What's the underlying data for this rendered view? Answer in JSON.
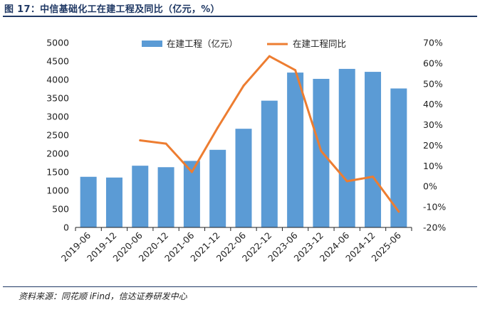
{
  "figure": {
    "title": "图 17：中信基础化工在建工程及同比（亿元，%）",
    "source": "资料来源：同花顺 iFind，信达证券研发中心"
  },
  "chart_data": {
    "type": "bar",
    "categories": [
      "2019-06",
      "2019-12",
      "2020-06",
      "2020-12",
      "2021-06",
      "2021-12",
      "2022-06",
      "2022-12",
      "2023-06",
      "2023-12",
      "2024-06",
      "2024-12",
      "2025-06"
    ],
    "series": [
      {
        "name": "在建工程（亿元）",
        "type": "bar",
        "axis": "left",
        "color": "#5b9bd5",
        "values": [
          1370,
          1350,
          1670,
          1630,
          1800,
          2100,
          2670,
          3430,
          4190,
          4020,
          4290,
          4210,
          3760
        ]
      },
      {
        "name": "在建工程同比",
        "type": "line",
        "axis": "right",
        "color": "#ed7d31",
        "values": [
          null,
          null,
          22.4,
          20.8,
          7.0,
          28.6,
          49.0,
          63.4,
          56.6,
          17.2,
          2.5,
          4.7,
          -12.3
        ]
      }
    ],
    "yaxis_left": {
      "ylim": [
        0,
        5000
      ],
      "ticks": [
        0,
        500,
        1000,
        1500,
        2000,
        2500,
        3000,
        3500,
        4000,
        4500,
        5000
      ],
      "tick_labels": [
        "0",
        "500",
        "1000",
        "1500",
        "2000",
        "2500",
        "3000",
        "3500",
        "4000",
        "4500",
        "5000"
      ]
    },
    "yaxis_right": {
      "ylim": [
        -20,
        70
      ],
      "ticks": [
        -20,
        -10,
        0,
        10,
        20,
        30,
        40,
        50,
        60,
        70
      ],
      "tick_labels": [
        "-20%",
        "-10%",
        "0%",
        "10%",
        "20%",
        "30%",
        "40%",
        "50%",
        "60%",
        "70%"
      ]
    },
    "grid": false,
    "legend": "top-center"
  }
}
